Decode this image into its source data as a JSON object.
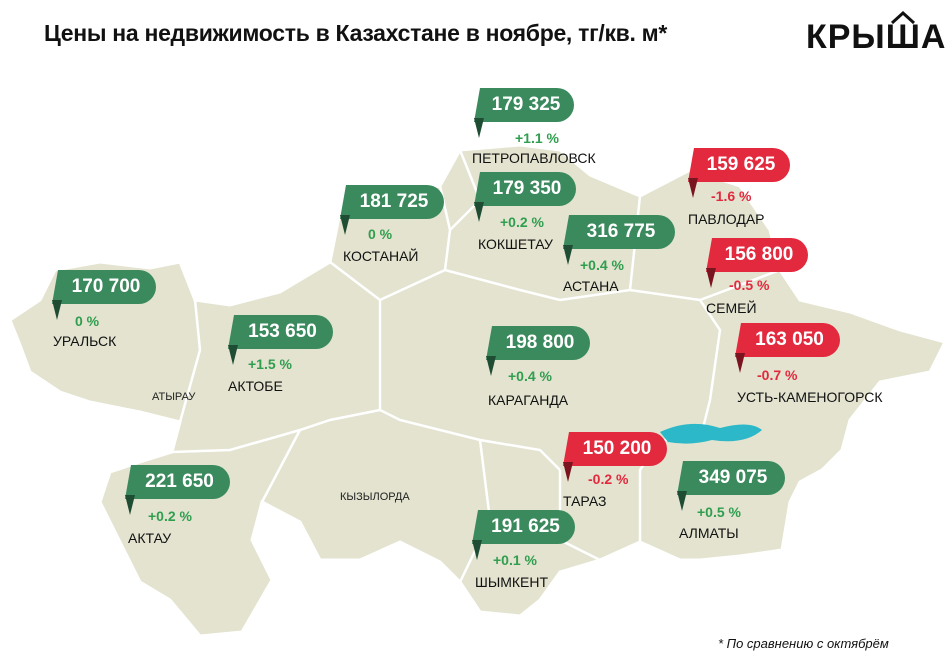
{
  "title": "Цены на недвижимость в Казахстане в ноябре, тг/кв. м*",
  "logo": "КРЫША",
  "footnote": "* По сравнению с октябрём",
  "colors": {
    "increase": "#3b8a5e",
    "decrease": "#e2293d",
    "map": "#e3e3d0",
    "lake": "#2cb8c8"
  },
  "regions": [
    "АТЫРАУ",
    "КЫЗЫЛОРДА"
  ],
  "cities": [
    {
      "id": "petropavlovsk",
      "name": "ПЕТРОПАВЛОВСК",
      "price": "179 325",
      "change": "+1.1 %",
      "trend": "up"
    },
    {
      "id": "kostanay",
      "name": "КОСТАНАЙ",
      "price": "181 725",
      "change": "0 %",
      "trend": "up"
    },
    {
      "id": "kokshetau",
      "name": "КОКШЕТАУ",
      "price": "179 350",
      "change": "+0.2 %",
      "trend": "up"
    },
    {
      "id": "astana",
      "name": "АСТАНА",
      "price": "316 775",
      "change": "+0.4 %",
      "trend": "up"
    },
    {
      "id": "pavlodar",
      "name": "ПАВЛОДАР",
      "price": "159 625",
      "change": "-1.6 %",
      "trend": "down"
    },
    {
      "id": "semey",
      "name": "СЕМЕЙ",
      "price": "156 800",
      "change": "-0.5 %",
      "trend": "down"
    },
    {
      "id": "uralsk",
      "name": "УРАЛЬСК",
      "price": "170 700",
      "change": "0 %",
      "trend": "up"
    },
    {
      "id": "aktobe",
      "name": "АКТОБЕ",
      "price": "153 650",
      "change": "+1.5 %",
      "trend": "up"
    },
    {
      "id": "karaganda",
      "name": "КАРАГАНДА",
      "price": "198 800",
      "change": "+0.4 %",
      "trend": "up"
    },
    {
      "id": "ust-kamenogorsk",
      "name": "УСТЬ-КАМЕНОГОРСК",
      "price": "163 050",
      "change": "-0.7 %",
      "trend": "down"
    },
    {
      "id": "taraz",
      "name": "ТАРАЗ",
      "price": "150 200",
      "change": "-0.2 %",
      "trend": "down"
    },
    {
      "id": "almaty",
      "name": "АЛМАТЫ",
      "price": "349 075",
      "change": "+0.5 %",
      "trend": "up"
    },
    {
      "id": "aktau",
      "name": "АКТАУ",
      "price": "221 650",
      "change": "+0.2 %",
      "trend": "up"
    },
    {
      "id": "shymkent",
      "name": "ШЫМКЕНТ",
      "price": "191 625",
      "change": "+0.1 %",
      "trend": "up"
    }
  ]
}
